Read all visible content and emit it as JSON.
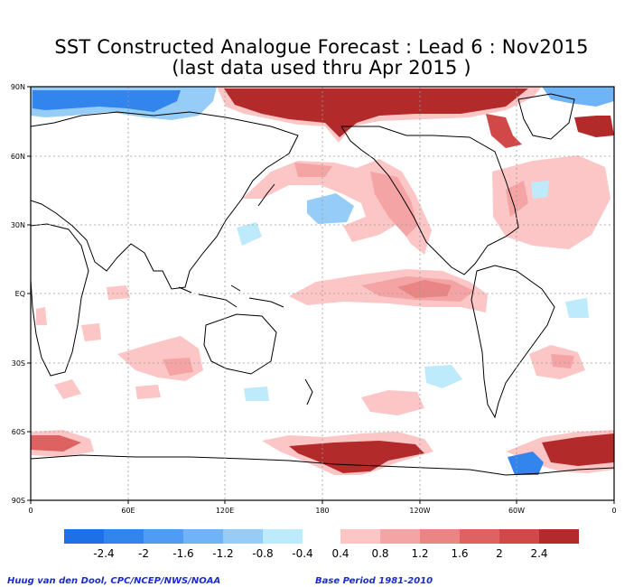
{
  "title_line1": "SST Constructed Analogue Forecast : Lead 6 : Nov2015",
  "title_line2": "(last data used thru Apr 2015 )",
  "lat_labels": [
    "90N",
    "60N",
    "30N",
    "EQ",
    "30S",
    "60S",
    "90S"
  ],
  "lon_labels": [
    "0",
    "60E",
    "120E",
    "180",
    "120W",
    "60W",
    "0"
  ],
  "colorbar": {
    "labels": [
      "-2.4",
      "-2",
      "-1.6",
      "-1.2",
      "-0.8",
      "-0.4",
      "0.4",
      "0.8",
      "1.2",
      "1.6",
      "2",
      "2.4"
    ],
    "negative_colors": [
      "#1f6fe6",
      "#3385ee",
      "#4f9cf2",
      "#6fb4f6",
      "#95cdf8",
      "#bdebfb"
    ],
    "positive_colors": [
      "#fcc6c6",
      "#f4a4a4",
      "#ea8585",
      "#de6262",
      "#d04848",
      "#b32a2a"
    ]
  },
  "footer_left": "Huug van den Dool, CPC/NCEP/NWS/NOAA",
  "footer_right": "Base Period 1981-2010",
  "colors": {
    "land_outline": "#000000",
    "grid": "#9a9a9a",
    "frame": "#000000",
    "footer_text": "#1a2bd0"
  }
}
